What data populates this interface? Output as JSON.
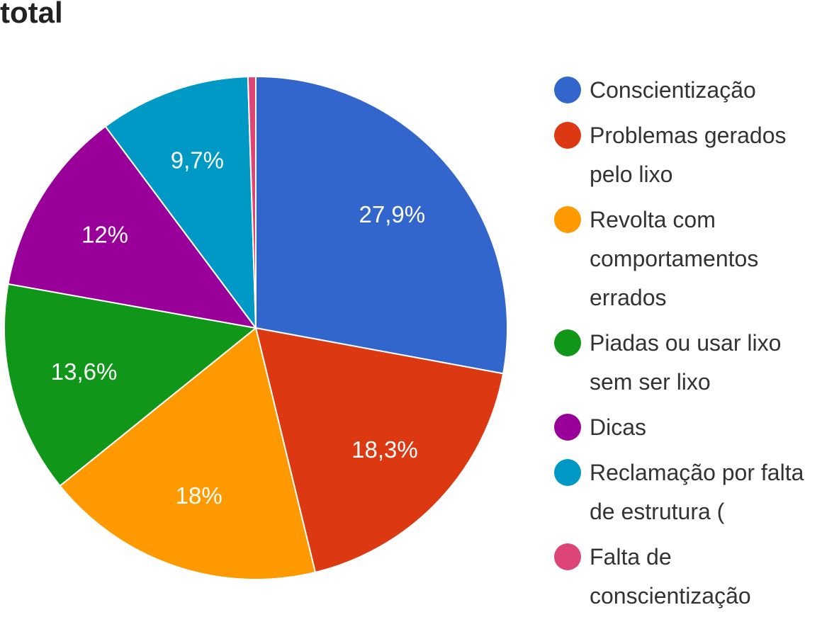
{
  "title": "total",
  "chart_data": {
    "type": "pie",
    "title": "total",
    "legend_position": "right",
    "slices": [
      {
        "label": "Conscientização",
        "value": 27.9,
        "display": "27,9%",
        "color": "#3366cc"
      },
      {
        "label": "Problemas gerados pelo lixo",
        "value": 18.3,
        "display": "18,3%",
        "color": "#dc3912"
      },
      {
        "label": "Revolta com comportamentos errados",
        "value": 18.0,
        "display": "18%",
        "color": "#ff9900"
      },
      {
        "label": "Piadas ou usar lixo sem ser lixo",
        "value": 13.6,
        "display": "13,6%",
        "color": "#109618"
      },
      {
        "label": "Dicas",
        "value": 12.0,
        "display": "12%",
        "color": "#990099"
      },
      {
        "label": "Reclamação por falta de estrutura (",
        "value": 9.7,
        "display": "9,7%",
        "color": "#0099c6"
      },
      {
        "label": "Falta de conscientização",
        "value": 0.5,
        "display": "",
        "color": "#dd4477"
      }
    ]
  }
}
